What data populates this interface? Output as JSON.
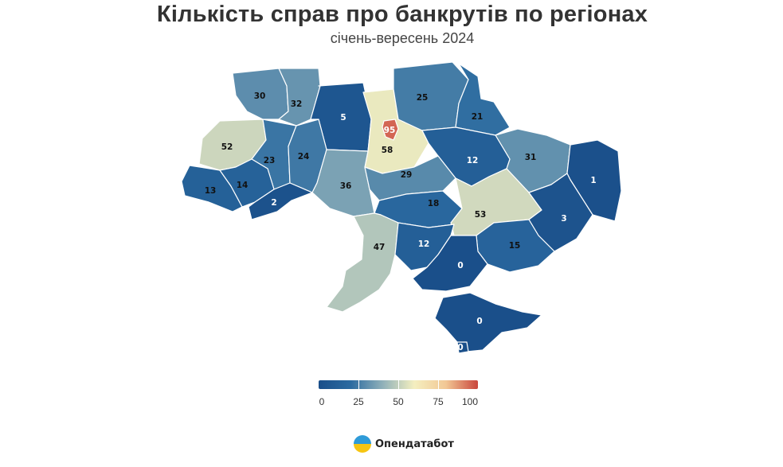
{
  "title": "Кількість справ про банкрутів по регіонах",
  "subtitle": "січень-вересень 2024",
  "legend": {
    "ticks": [
      "0",
      "25",
      "50",
      "75",
      "100"
    ],
    "colors": [
      "#1a4f8a",
      "#2b6aa0",
      "#8fb0b9",
      "#f4efc0",
      "#f2c794",
      "#c9463d"
    ]
  },
  "brand": {
    "name": "Опендатабот",
    "icon": "opendatabot-logo-icon"
  },
  "chart_data": {
    "type": "choropleth",
    "value_range": [
      0,
      100
    ],
    "regions": [
      {
        "id": "volyn",
        "value": 30
      },
      {
        "id": "rivne",
        "value": 32
      },
      {
        "id": "zhytomyr",
        "value": 5
      },
      {
        "id": "kyiv-oblast",
        "value": 58
      },
      {
        "id": "kyiv-city",
        "value": 95
      },
      {
        "id": "chernihiv",
        "value": 25
      },
      {
        "id": "sumy",
        "value": 21
      },
      {
        "id": "lviv",
        "value": 52
      },
      {
        "id": "ternopil",
        "value": 23
      },
      {
        "id": "khmelnytskyi",
        "value": 24
      },
      {
        "id": "kharkiv",
        "value": 31
      },
      {
        "id": "poltava",
        "value": 12
      },
      {
        "id": "luhansk",
        "value": 1
      },
      {
        "id": "zakarpattia",
        "value": 13
      },
      {
        "id": "ivano-frankivsk",
        "value": 14
      },
      {
        "id": "vinnytsia",
        "value": 36
      },
      {
        "id": "cherkasy",
        "value": 29
      },
      {
        "id": "chernivtsi",
        "value": 2
      },
      {
        "id": "kirovohrad",
        "value": 18
      },
      {
        "id": "dnipro",
        "value": 53
      },
      {
        "id": "donetsk",
        "value": 3
      },
      {
        "id": "odesa",
        "value": 47
      },
      {
        "id": "mykolaiv",
        "value": 12
      },
      {
        "id": "zaporizhzhia",
        "value": 15
      },
      {
        "id": "kherson",
        "value": 0
      },
      {
        "id": "crimea",
        "value": 0
      },
      {
        "id": "sevastopol",
        "value": 0
      }
    ]
  }
}
